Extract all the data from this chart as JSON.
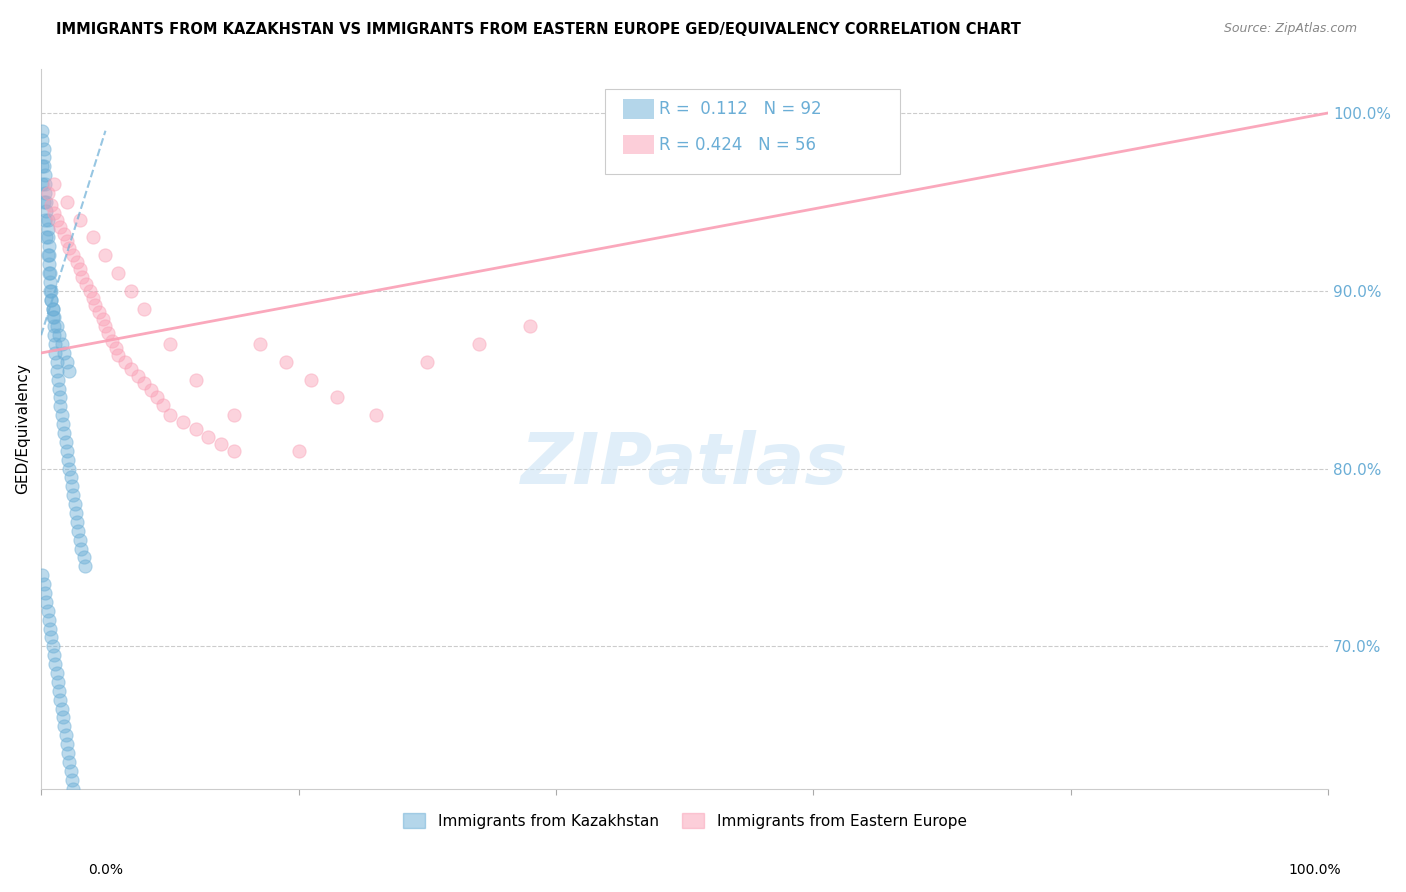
{
  "title": "IMMIGRANTS FROM KAZAKHSTAN VS IMMIGRANTS FROM EASTERN EUROPE GED/EQUIVALENCY CORRELATION CHART",
  "source": "Source: ZipAtlas.com",
  "ylabel": "GED/Equivalency",
  "y_tick_labels": [
    "70.0%",
    "80.0%",
    "90.0%",
    "100.0%"
  ],
  "y_tick_values": [
    0.7,
    0.8,
    0.9,
    1.0
  ],
  "x_tick_values": [
    0.0,
    0.2,
    0.4,
    0.6,
    0.8,
    1.0
  ],
  "legend_label1": "Immigrants from Kazakhstan",
  "legend_label2": "Immigrants from Eastern Europe",
  "blue_color": "#6baed6",
  "pink_color": "#fa9fb5",
  "right_label_color": "#6baed6",
  "kazakhstan_x": [
    0.001,
    0.001,
    0.002,
    0.002,
    0.002,
    0.003,
    0.003,
    0.003,
    0.004,
    0.004,
    0.005,
    0.005,
    0.005,
    0.006,
    0.006,
    0.006,
    0.007,
    0.007,
    0.008,
    0.008,
    0.009,
    0.009,
    0.01,
    0.01,
    0.011,
    0.011,
    0.012,
    0.012,
    0.013,
    0.014,
    0.015,
    0.015,
    0.016,
    0.017,
    0.018,
    0.019,
    0.02,
    0.021,
    0.022,
    0.023,
    0.024,
    0.025,
    0.026,
    0.027,
    0.028,
    0.029,
    0.03,
    0.031,
    0.033,
    0.034,
    0.001,
    0.001,
    0.002,
    0.003,
    0.004,
    0.005,
    0.006,
    0.007,
    0.008,
    0.009,
    0.01,
    0.012,
    0.014,
    0.016,
    0.018,
    0.02,
    0.022,
    0.001,
    0.002,
    0.003,
    0.004,
    0.005,
    0.006,
    0.007,
    0.008,
    0.009,
    0.01,
    0.011,
    0.012,
    0.013,
    0.014,
    0.015,
    0.016,
    0.017,
    0.018,
    0.019,
    0.02,
    0.021,
    0.022,
    0.023,
    0.024,
    0.025
  ],
  "kazakhstan_y": [
    0.99,
    0.985,
    0.98,
    0.975,
    0.97,
    0.965,
    0.96,
    0.955,
    0.95,
    0.945,
    0.94,
    0.935,
    0.93,
    0.925,
    0.92,
    0.915,
    0.91,
    0.905,
    0.9,
    0.895,
    0.89,
    0.885,
    0.88,
    0.875,
    0.87,
    0.865,
    0.86,
    0.855,
    0.85,
    0.845,
    0.84,
    0.835,
    0.83,
    0.825,
    0.82,
    0.815,
    0.81,
    0.805,
    0.8,
    0.795,
    0.79,
    0.785,
    0.78,
    0.775,
    0.77,
    0.765,
    0.76,
    0.755,
    0.75,
    0.745,
    0.97,
    0.96,
    0.95,
    0.94,
    0.93,
    0.92,
    0.91,
    0.9,
    0.895,
    0.89,
    0.885,
    0.88,
    0.875,
    0.87,
    0.865,
    0.86,
    0.855,
    0.74,
    0.735,
    0.73,
    0.725,
    0.72,
    0.715,
    0.71,
    0.705,
    0.7,
    0.695,
    0.69,
    0.685,
    0.68,
    0.675,
    0.67,
    0.665,
    0.66,
    0.655,
    0.65,
    0.645,
    0.64,
    0.635,
    0.63,
    0.625,
    0.62
  ],
  "eastern_x": [
    0.005,
    0.008,
    0.01,
    0.012,
    0.015,
    0.018,
    0.02,
    0.022,
    0.025,
    0.028,
    0.03,
    0.032,
    0.035,
    0.038,
    0.04,
    0.042,
    0.045,
    0.048,
    0.05,
    0.052,
    0.055,
    0.058,
    0.06,
    0.065,
    0.07,
    0.075,
    0.08,
    0.085,
    0.09,
    0.095,
    0.1,
    0.11,
    0.12,
    0.13,
    0.14,
    0.15,
    0.17,
    0.19,
    0.21,
    0.23,
    0.26,
    0.3,
    0.34,
    0.38,
    0.01,
    0.02,
    0.03,
    0.04,
    0.05,
    0.06,
    0.07,
    0.08,
    0.1,
    0.12,
    0.15,
    0.2
  ],
  "eastern_y": [
    0.955,
    0.948,
    0.944,
    0.94,
    0.936,
    0.932,
    0.928,
    0.924,
    0.92,
    0.916,
    0.912,
    0.908,
    0.904,
    0.9,
    0.896,
    0.892,
    0.888,
    0.884,
    0.88,
    0.876,
    0.872,
    0.868,
    0.864,
    0.86,
    0.856,
    0.852,
    0.848,
    0.844,
    0.84,
    0.836,
    0.83,
    0.826,
    0.822,
    0.818,
    0.814,
    0.81,
    0.87,
    0.86,
    0.85,
    0.84,
    0.83,
    0.86,
    0.87,
    0.88,
    0.96,
    0.95,
    0.94,
    0.93,
    0.92,
    0.91,
    0.9,
    0.89,
    0.87,
    0.85,
    0.83,
    0.81
  ],
  "kaz_trend_x": [
    0.0,
    0.05
  ],
  "kaz_trend_y": [
    0.875,
    0.99
  ],
  "eastern_trend_x": [
    0.0,
    1.0
  ],
  "eastern_trend_y": [
    0.865,
    1.0
  ],
  "ylim": [
    0.62,
    1.025
  ],
  "xlim": [
    0.0,
    1.0
  ]
}
